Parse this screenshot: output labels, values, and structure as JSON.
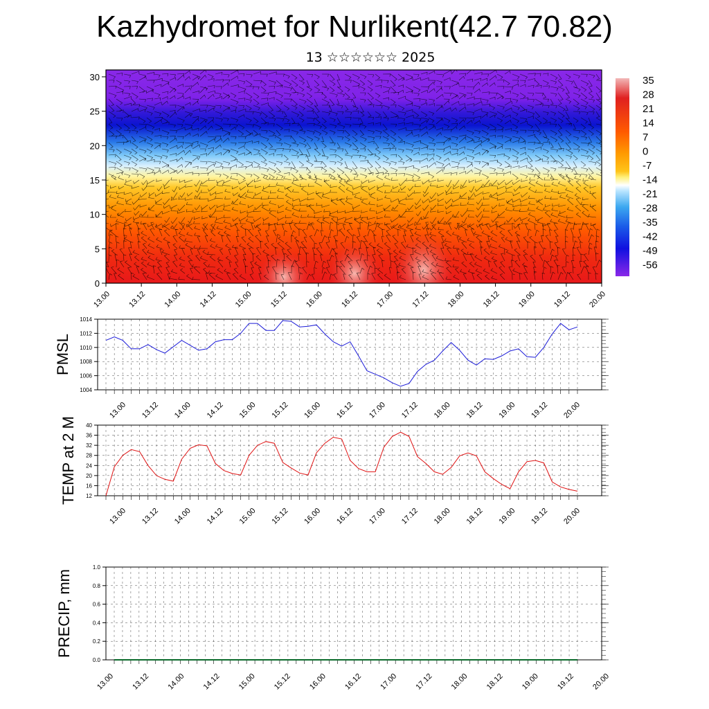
{
  "header": {
    "title": "Kazhydromet for Nurlikent(42.7 70.82)",
    "subtitle": "13 ☆☆☆☆☆☆ 2025"
  },
  "chart_data": [
    {
      "type": "heatmap",
      "title": "Temperature cross-section with wind barbs",
      "xlabel": "",
      "ylabel": "",
      "x_ticks": [
        "13.00",
        "13.12",
        "14.00",
        "14.12",
        "15.00",
        "15.12",
        "16.00",
        "16.12",
        "17.00",
        "17.12",
        "18.00",
        "18.12",
        "19.00",
        "19.12",
        "20.00"
      ],
      "y_ticks": [
        0,
        5,
        10,
        15,
        20,
        25,
        30
      ],
      "ylim": [
        0,
        31
      ],
      "colorbar_labels": [
        "35",
        "28",
        "21",
        "14",
        "7",
        "0",
        "-7",
        "-14",
        "-21",
        "-28",
        "-35",
        "-42",
        "-49",
        "-56"
      ],
      "colorbar_colors": [
        "#f2b8b8",
        "#e02020",
        "#ff5a00",
        "#ff9a00",
        "#ffc41a",
        "#fff07a",
        "#b8e4ff",
        "#3ca8f0",
        "#1a5ae8",
        "#1010e0",
        "#6a1ae8",
        "#8a28e8"
      ],
      "wind_barbs": true
    },
    {
      "type": "line",
      "ylabel": "PMSL",
      "series_color": "#1a1ad8",
      "ylim": [
        1004,
        1014
      ],
      "y_ticks": [
        1004,
        1006,
        1008,
        1010,
        1012,
        1014
      ],
      "x_ticks": [
        "13.00",
        "13.12",
        "14.00",
        "14.12",
        "15.00",
        "15.12",
        "16.00",
        "16.12",
        "17.00",
        "17.12",
        "18.00",
        "18.12",
        "19.00",
        "19.12",
        "20.00"
      ],
      "values": [
        1011.0,
        1011.5,
        1011.0,
        1009.8,
        1009.8,
        1010.4,
        1009.7,
        1009.2,
        1010.1,
        1011.0,
        1010.3,
        1009.6,
        1009.8,
        1010.8,
        1011.1,
        1011.1,
        1012.0,
        1013.4,
        1013.4,
        1012.4,
        1012.4,
        1013.8,
        1013.7,
        1012.9,
        1013.0,
        1013.2,
        1011.9,
        1010.8,
        1010.2,
        1010.8,
        1008.8,
        1006.7,
        1006.2,
        1005.7,
        1005.0,
        1004.5,
        1004.9,
        1006.6,
        1007.6,
        1008.2,
        1009.5,
        1010.7,
        1009.6,
        1008.2,
        1007.5,
        1008.4,
        1008.3,
        1008.8,
        1009.5,
        1009.8,
        1008.7,
        1008.6,
        1010.0,
        1011.9,
        1013.4,
        1012.5,
        1012.9
      ]
    },
    {
      "type": "line",
      "ylabel": "TEMP at 2 M",
      "series_color": "#e01010",
      "ylim": [
        12,
        40
      ],
      "y_ticks": [
        12,
        16,
        20,
        24,
        28,
        32,
        36,
        40
      ],
      "x_ticks": [
        "13.00",
        "13.12",
        "14.00",
        "14.12",
        "15.00",
        "15.12",
        "16.00",
        "16.12",
        "17.00",
        "17.12",
        "18.00",
        "18.12",
        "19.00",
        "19.12",
        "20.00"
      ],
      "values": [
        12.0,
        23.5,
        28.0,
        30.3,
        29.5,
        24.0,
        20.0,
        18.5,
        17.8,
        26.5,
        30.8,
        32.2,
        31.8,
        24.8,
        22.0,
        20.8,
        20.2,
        28.0,
        32.0,
        33.5,
        32.8,
        25.2,
        23.0,
        21.0,
        20.2,
        29.0,
        32.8,
        35.2,
        34.5,
        26.0,
        22.8,
        21.5,
        21.5,
        31.2,
        35.5,
        37.2,
        35.5,
        27.5,
        24.8,
        21.5,
        20.5,
        23.2,
        27.8,
        29.0,
        27.8,
        21.5,
        18.8,
        16.5,
        14.8,
        21.5,
        25.5,
        26.0,
        25.0,
        17.5,
        15.5,
        14.5,
        13.8
      ]
    },
    {
      "type": "line",
      "ylabel": "PRECIP, mm",
      "series_color": "#0a6a2a",
      "ylim": [
        0,
        1
      ],
      "y_ticks": [
        "0.0",
        "0.2",
        "0.4",
        "0.6",
        "0.8",
        "1.0"
      ],
      "x_ticks": [
        "13.00",
        "13.12",
        "14.00",
        "14.12",
        "15.00",
        "15.12",
        "16.00",
        "16.12",
        "17.00",
        "17.12",
        "18.00",
        "18.12",
        "19.00",
        "19.12",
        "20.00"
      ],
      "values": [
        0,
        0,
        0,
        0,
        0,
        0,
        0,
        0,
        0,
        0,
        0,
        0,
        0,
        0,
        0,
        0,
        0,
        0,
        0,
        0,
        0,
        0,
        0,
        0,
        0,
        0,
        0,
        0,
        0,
        0,
        0,
        0,
        0,
        0,
        0,
        0,
        0,
        0,
        0,
        0,
        0,
        0,
        0,
        0,
        0,
        0,
        0,
        0,
        0,
        0,
        0,
        0,
        0,
        0,
        0,
        0,
        0
      ]
    }
  ]
}
